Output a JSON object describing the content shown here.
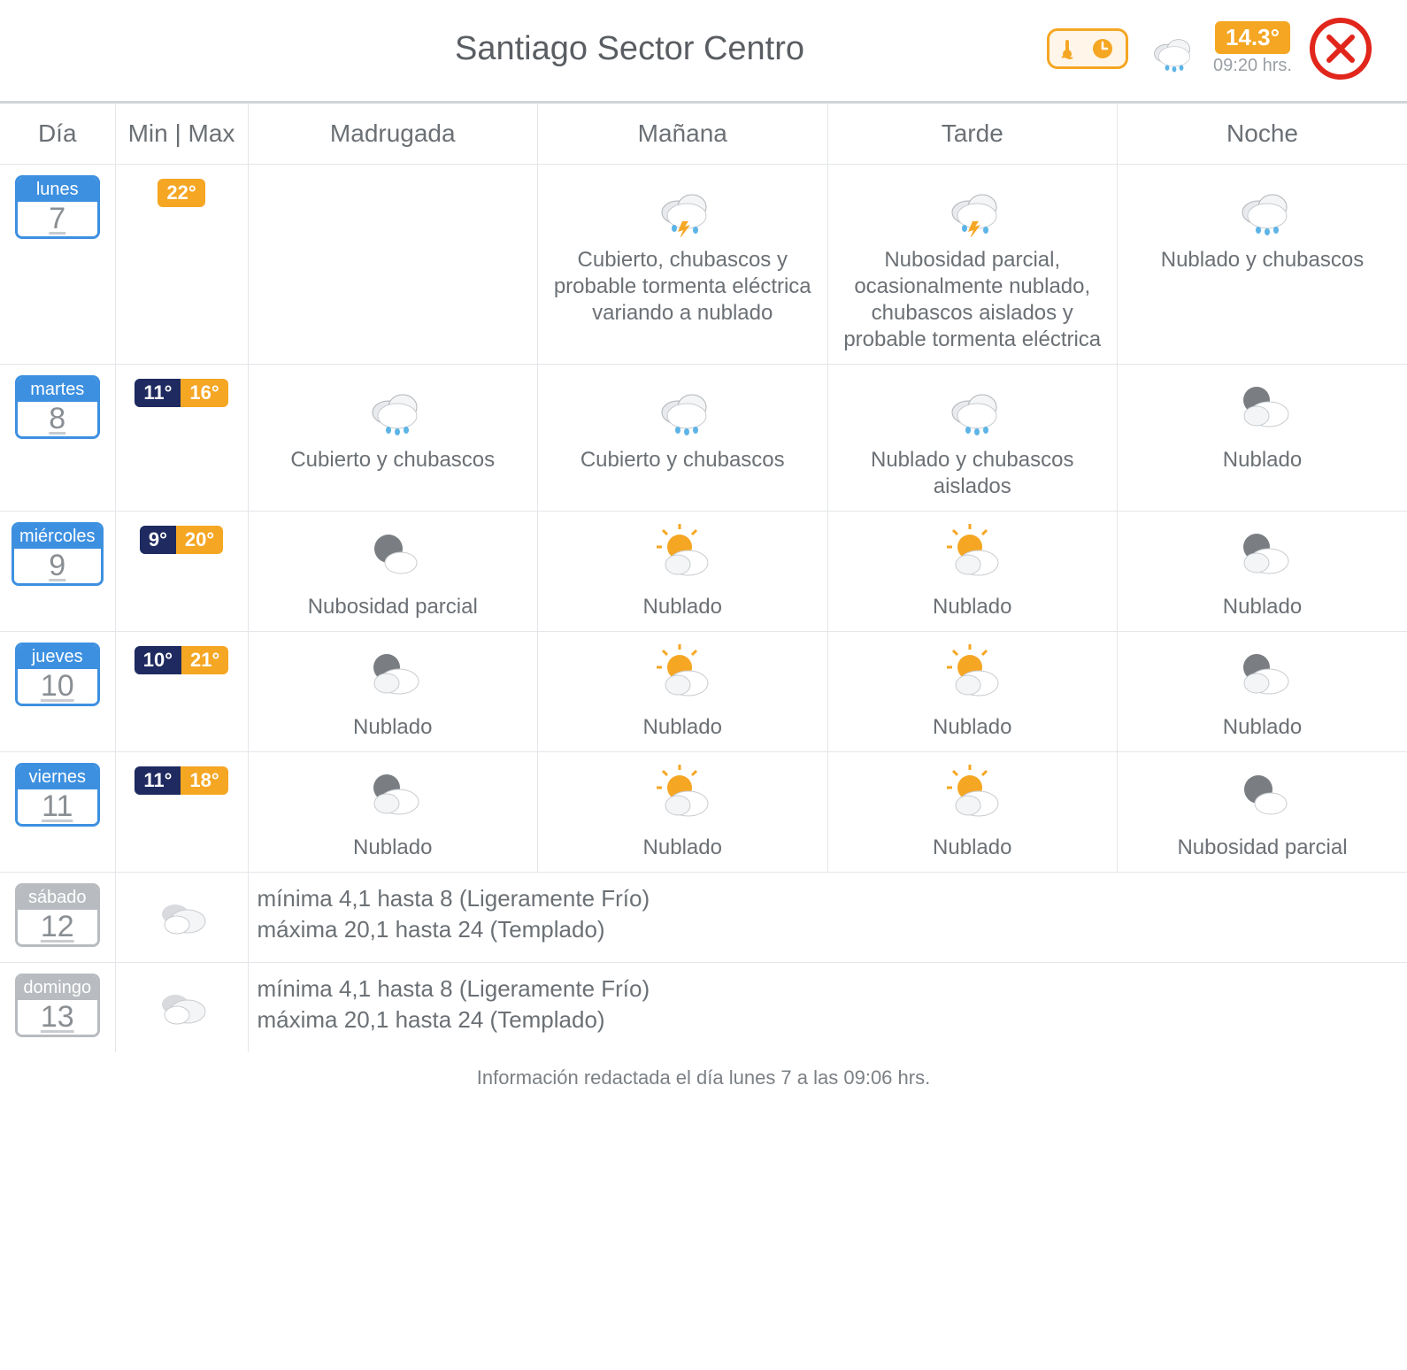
{
  "header": {
    "title": "Santiago Sector Centro",
    "temp_now": "14.3°",
    "time_now": "09:20 hrs.",
    "now_icon": "rain",
    "colors": {
      "accent_orange": "#f5a623",
      "accent_blue": "#3d90e0",
      "min_navy": "#1e2a60",
      "close_red": "#e1261c",
      "grey": "#b8bcc0"
    }
  },
  "columns": {
    "day": "Día",
    "minmax": "Min | Max",
    "periods": [
      "Madrugada",
      "Mañana",
      "Tarde",
      "Noche"
    ]
  },
  "rows": [
    {
      "type": "detail",
      "day_name": "lunes",
      "day_num": "7",
      "pill_style": "blue",
      "min": null,
      "max": "22°",
      "periods": [
        {
          "icon": null,
          "desc": ""
        },
        {
          "icon": "storm",
          "desc": "Cubierto, chubascos y probable tormenta eléctrica variando a nublado"
        },
        {
          "icon": "storm",
          "desc": "Nubosidad parcial, ocasionalmente nublado, chubascos aislados y probable tormenta eléctrica"
        },
        {
          "icon": "rain",
          "desc": "Nublado y chubascos"
        }
      ]
    },
    {
      "type": "detail",
      "day_name": "martes",
      "day_num": "8",
      "pill_style": "blue",
      "min": "11°",
      "max": "16°",
      "periods": [
        {
          "icon": "rain",
          "desc": "Cubierto y chubascos"
        },
        {
          "icon": "rain",
          "desc": "Cubierto y chubascos"
        },
        {
          "icon": "rain",
          "desc": "Nublado y chubascos aislados"
        },
        {
          "icon": "night-cloud",
          "desc": "Nublado"
        }
      ]
    },
    {
      "type": "detail",
      "day_name": "miércoles",
      "day_num": "9",
      "pill_style": "blue",
      "min": "9°",
      "max": "20°",
      "periods": [
        {
          "icon": "night-partial",
          "desc": "Nubosidad parcial"
        },
        {
          "icon": "sun-cloud",
          "desc": "Nublado"
        },
        {
          "icon": "sun-cloud",
          "desc": "Nublado"
        },
        {
          "icon": "night-cloud",
          "desc": "Nublado"
        }
      ]
    },
    {
      "type": "detail",
      "day_name": "jueves",
      "day_num": "10",
      "pill_style": "blue",
      "min": "10°",
      "max": "21°",
      "periods": [
        {
          "icon": "night-cloud",
          "desc": "Nublado"
        },
        {
          "icon": "sun-cloud",
          "desc": "Nublado"
        },
        {
          "icon": "sun-cloud",
          "desc": "Nublado"
        },
        {
          "icon": "night-cloud",
          "desc": "Nublado"
        }
      ]
    },
    {
      "type": "detail",
      "day_name": "viernes",
      "day_num": "11",
      "pill_style": "blue",
      "min": "11°",
      "max": "18°",
      "periods": [
        {
          "icon": "night-cloud",
          "desc": "Nublado"
        },
        {
          "icon": "sun-cloud",
          "desc": "Nublado"
        },
        {
          "icon": "sun-cloud",
          "desc": "Nublado"
        },
        {
          "icon": "night-partial",
          "desc": "Nubosidad parcial"
        }
      ]
    },
    {
      "type": "summary",
      "day_name": "sábado",
      "day_num": "12",
      "pill_style": "grey",
      "icon": "clouds",
      "line1": "mínima 4,1 hasta 8 (Ligeramente Frío)",
      "line2": "máxima 20,1 hasta 24 (Templado)"
    },
    {
      "type": "summary",
      "day_name": "domingo",
      "day_num": "13",
      "pill_style": "grey",
      "icon": "clouds",
      "line1": "mínima 4,1 hasta 8 (Ligeramente Frío)",
      "line2": "máxima 20,1 hasta 24 (Templado)"
    }
  ],
  "footer": "Información redactada el día lunes 7 a las 09:06 hrs."
}
